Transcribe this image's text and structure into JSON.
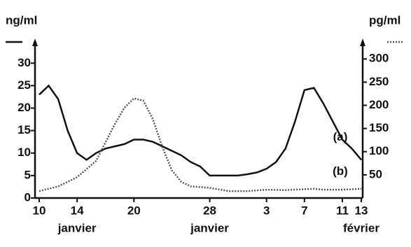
{
  "chart_data": {
    "type": "line",
    "y_title": "ng/ml",
    "y2_title": "pg/ml",
    "xlim": [
      0,
      34
    ],
    "xticks": [
      {
        "value": 0,
        "label": "10"
      },
      {
        "value": 4,
        "label": "14"
      },
      {
        "value": 10,
        "label": "20"
      },
      {
        "value": 18,
        "label": "28"
      },
      {
        "value": 24,
        "label": "3"
      },
      {
        "value": 28,
        "label": "7"
      },
      {
        "value": 32,
        "label": "11"
      },
      {
        "value": 34,
        "label": "13"
      }
    ],
    "month_labels": [
      {
        "x": 4,
        "text": "janvier"
      },
      {
        "x": 18,
        "text": "janvier"
      },
      {
        "x": 34,
        "text": "février"
      }
    ],
    "ylim": [
      0,
      33
    ],
    "yticks": [
      0,
      5,
      10,
      15,
      20,
      25,
      30
    ],
    "y2lim": [
      0,
      320
    ],
    "y2ticks": [
      50,
      100,
      150,
      200,
      250,
      300
    ],
    "series": [
      {
        "label": "(a)",
        "color": "#111111",
        "style": "solid",
        "x": [
          0,
          1,
          2,
          3,
          4,
          5,
          6,
          7,
          8,
          9,
          10,
          11,
          12,
          13,
          14,
          15,
          16,
          17,
          18,
          19,
          20,
          21,
          22,
          23,
          24,
          25,
          26,
          27,
          28,
          29,
          30,
          31,
          32,
          33,
          34
        ],
        "values": [
          23,
          25,
          22,
          15,
          10,
          8.5,
          10,
          11,
          11.5,
          12,
          13,
          13,
          12.5,
          11.5,
          10.5,
          9.5,
          8,
          7,
          5,
          5,
          5,
          5,
          5.3,
          5.7,
          6.5,
          8,
          11,
          17,
          24,
          24.5,
          21,
          17,
          13,
          11,
          8.5
        ]
      },
      {
        "label": "(b)",
        "color": "#555555",
        "style": "dotted",
        "axis": "y2",
        "x": [
          0,
          2,
          4,
          6,
          7,
          8,
          9,
          10,
          11,
          12,
          13,
          14,
          15,
          16,
          18,
          20,
          22,
          24,
          26,
          28,
          29,
          30,
          32,
          34
        ],
        "values": [
          15,
          25,
          45,
          80,
          120,
          160,
          195,
          215,
          210,
          170,
          110,
          60,
          35,
          25,
          22,
          15,
          15,
          18,
          17,
          19,
          20,
          18,
          18,
          20
        ]
      }
    ]
  }
}
